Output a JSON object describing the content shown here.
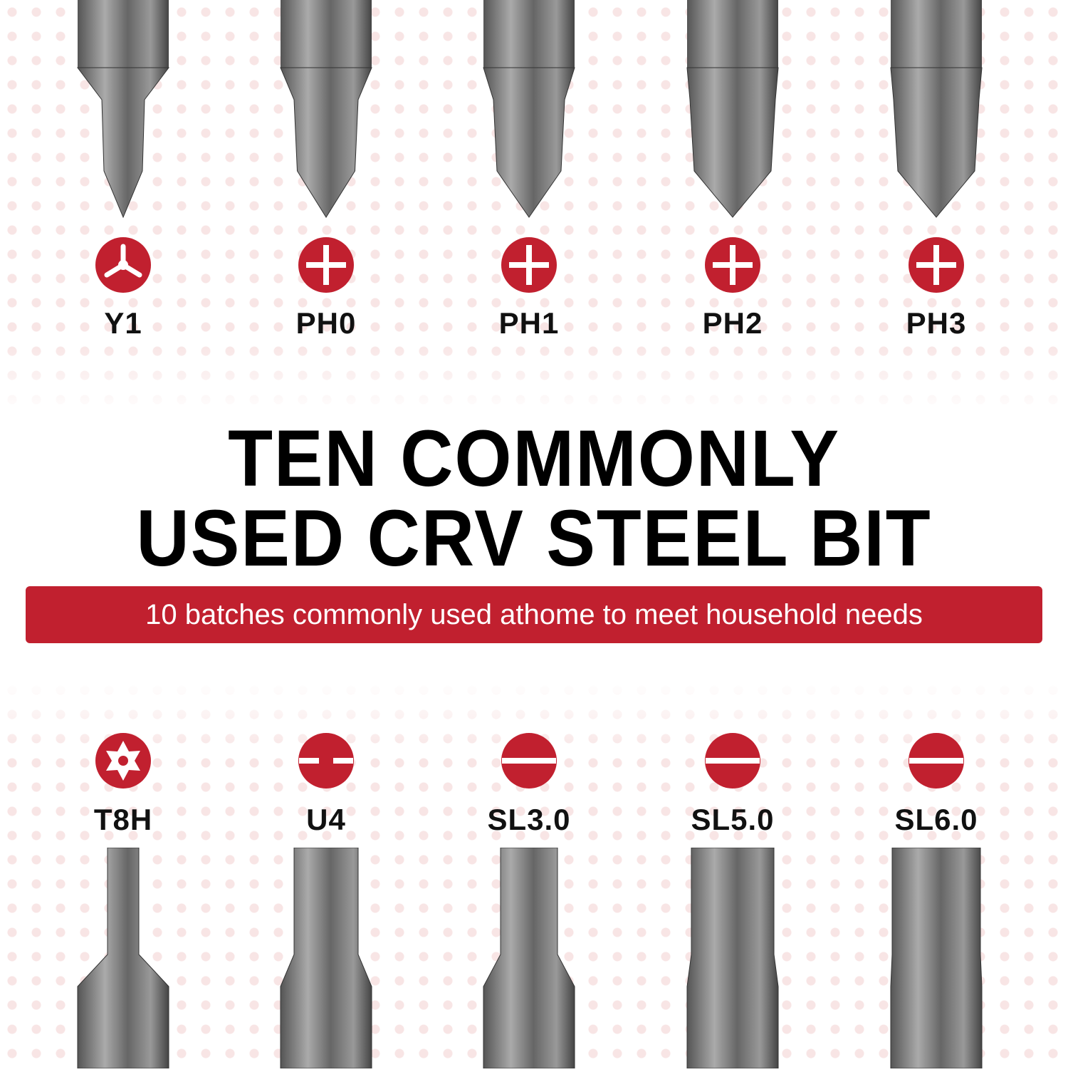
{
  "accent_color": "#c1202f",
  "heading": {
    "line1": "TEN COMMONLY",
    "line2": "USED CRV STEEL BIT"
  },
  "banner": "10 batches commonly used athome to meet household needs",
  "top_bits": [
    {
      "label": "Y1",
      "icon": "tri-wing-icon"
    },
    {
      "label": "PH0",
      "icon": "phillips-icon"
    },
    {
      "label": "PH1",
      "icon": "phillips-icon"
    },
    {
      "label": "PH2",
      "icon": "phillips-icon"
    },
    {
      "label": "PH3",
      "icon": "phillips-icon"
    }
  ],
  "bottom_bits": [
    {
      "label": "T8H",
      "icon": "torx-security-icon"
    },
    {
      "label": "U4",
      "icon": "spanner-icon"
    },
    {
      "label": "SL3.0",
      "icon": "slotted-icon"
    },
    {
      "label": "SL5.0",
      "icon": "slotted-icon"
    },
    {
      "label": "SL6.0",
      "icon": "slotted-icon"
    }
  ]
}
